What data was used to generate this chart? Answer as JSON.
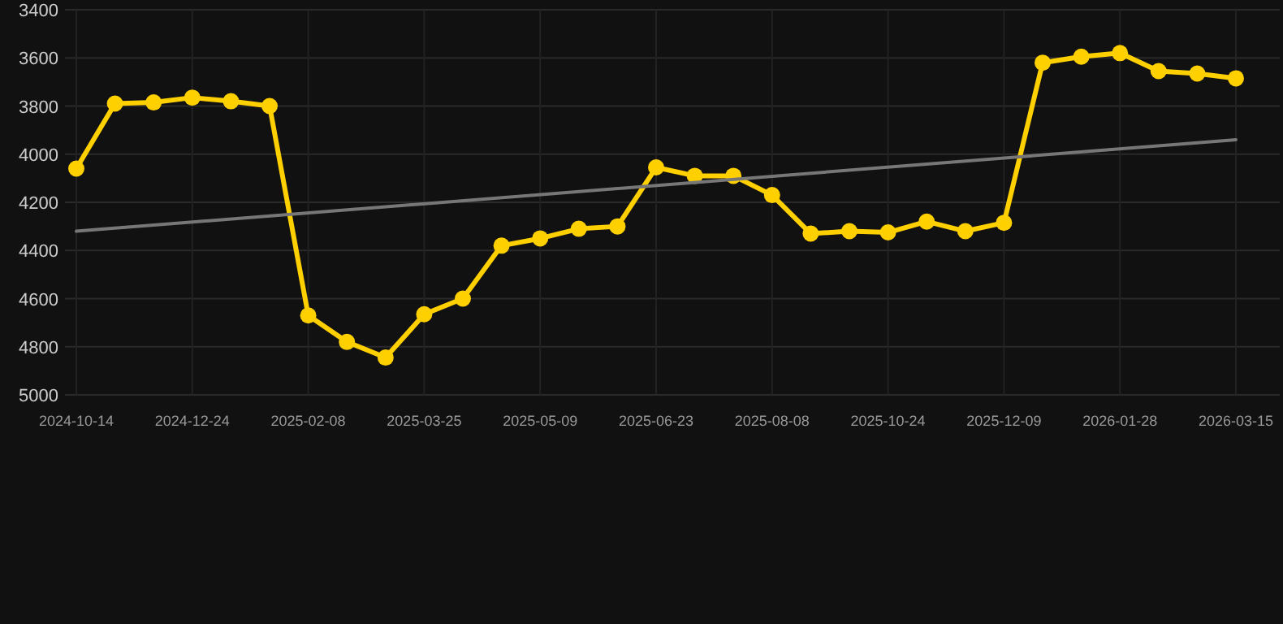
{
  "chart_data": {
    "type": "line",
    "categories": [
      "2024-10-14",
      null,
      null,
      "2024-12-24",
      null,
      null,
      "2025-02-08",
      null,
      null,
      "2025-03-25",
      null,
      null,
      "2025-05-09",
      null,
      null,
      "2025-06-23",
      null,
      null,
      "2025-08-08",
      null,
      null,
      "2025-10-24",
      null,
      null,
      "2025-12-09",
      null,
      null,
      "2026-01-28",
      null,
      null,
      "2026-03-15"
    ],
    "series": [
      {
        "color": "#ffd000",
        "marker": "circle",
        "values": [
          4060,
          3790,
          3785,
          3765,
          3780,
          3800,
          4670,
          4780,
          4845,
          4665,
          4600,
          4380,
          4350,
          4310,
          4300,
          4055,
          4090,
          4090,
          4170,
          4330,
          4320,
          4325,
          4280,
          4320,
          4285,
          3620,
          3595,
          3580,
          3655,
          3665,
          3685
        ]
      },
      {
        "type": "line",
        "color": "#777777",
        "marker": "none",
        "values": [
          4320,
          null,
          null,
          null,
          null,
          null,
          null,
          null,
          null,
          null,
          null,
          null,
          null,
          null,
          null,
          null,
          null,
          null,
          null,
          null,
          null,
          null,
          null,
          null,
          null,
          null,
          null,
          null,
          null,
          null,
          3940
        ]
      }
    ],
    "ylim": [
      5000,
      3400
    ],
    "yticks": [
      3400,
      3600,
      3800,
      4000,
      4200,
      4400,
      4600,
      4800,
      5000
    ],
    "grid": true
  }
}
